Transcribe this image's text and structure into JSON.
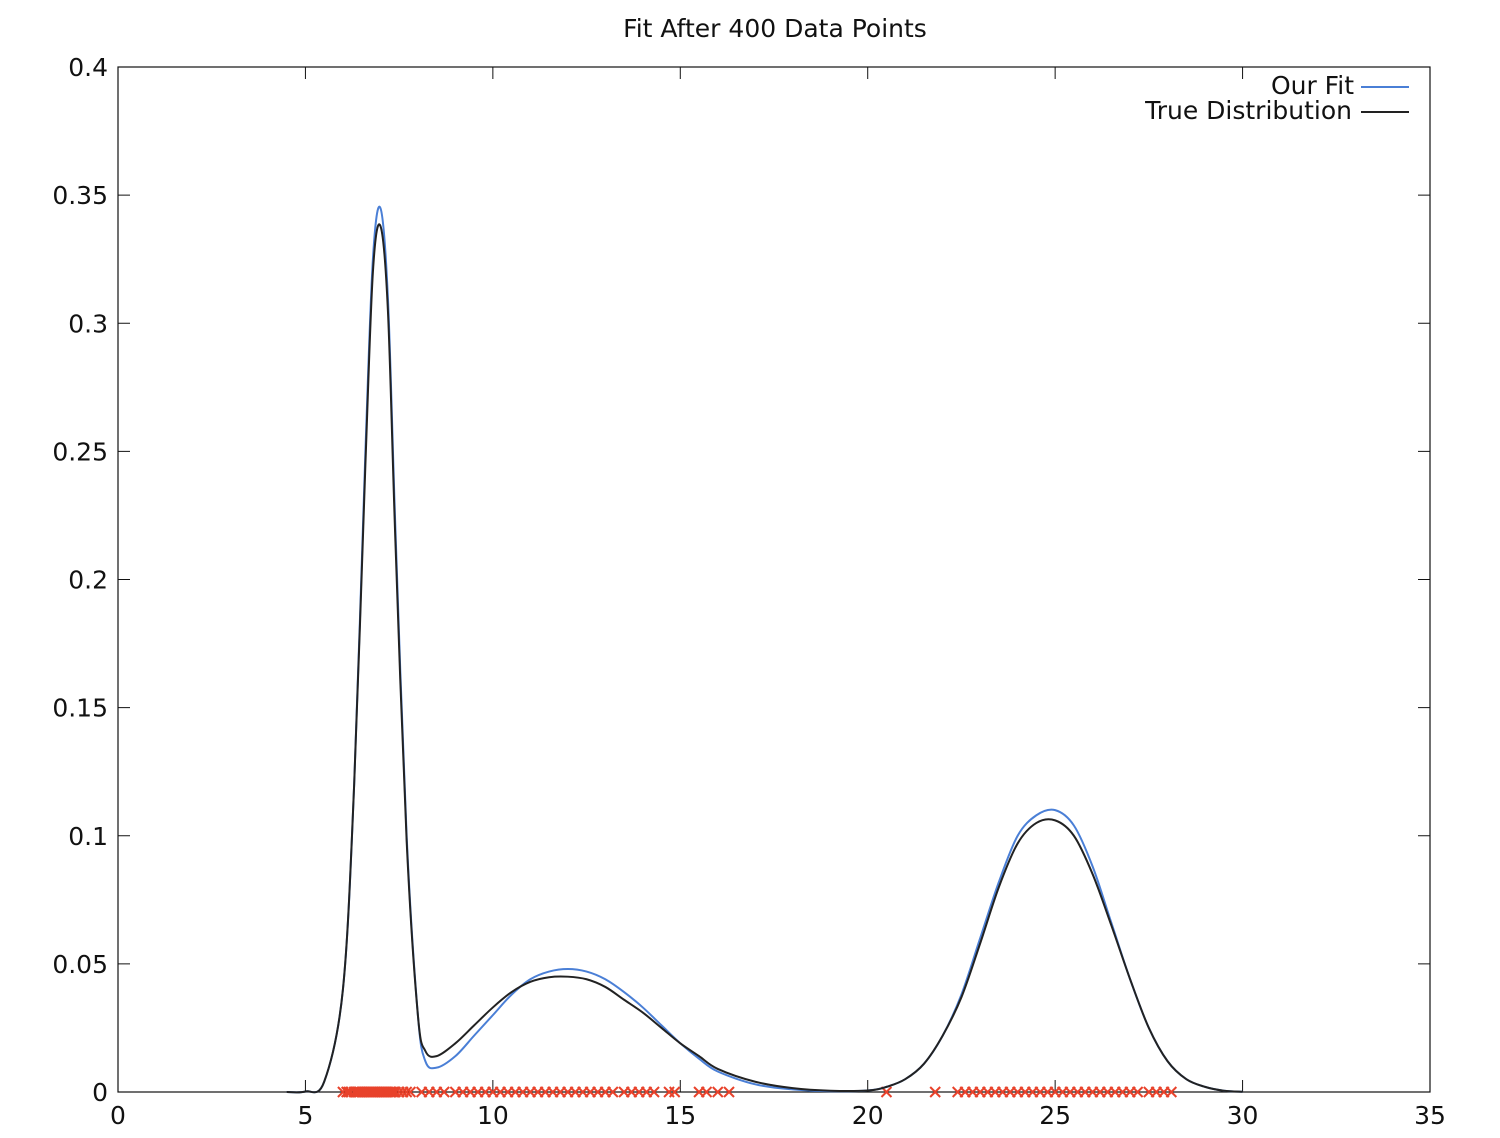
{
  "chart_data": {
    "type": "line",
    "title": "Fit After 400 Data Points",
    "xlabel": "",
    "ylabel": "",
    "xlim": [
      0,
      35
    ],
    "ylim": [
      0,
      0.4
    ],
    "x_ticks": [
      0,
      5,
      10,
      15,
      20,
      25,
      30,
      35
    ],
    "y_ticks": [
      0,
      0.05,
      0.1,
      0.15,
      0.2,
      0.25,
      0.3,
      0.35,
      0.4
    ],
    "x_tick_labels": [
      "0",
      "5",
      "10",
      "15",
      "20",
      "25",
      "30",
      "35"
    ],
    "y_tick_labels": [
      "0",
      "0.05",
      "0.1",
      "0.15",
      "0.2",
      "0.25",
      "0.3",
      "0.35",
      "0.4"
    ],
    "grid": false,
    "legend_position": "top-right",
    "series": [
      {
        "name": "Our Fit",
        "color": "#4a7fd6",
        "x": [
          4.5,
          5.0,
          5.5,
          6.0,
          6.3,
          6.6,
          6.8,
          7.0,
          7.2,
          7.4,
          7.7,
          8.0,
          8.2,
          8.5,
          9.0,
          9.5,
          10.0,
          10.5,
          11.0,
          11.5,
          12.0,
          12.5,
          13.0,
          13.5,
          14.0,
          14.5,
          15.0,
          15.5,
          16.0,
          17.0,
          18.0,
          19.0,
          20.0,
          20.5,
          21.0,
          21.5,
          22.0,
          22.5,
          23.0,
          23.5,
          24.0,
          24.5,
          25.0,
          25.5,
          26.0,
          26.5,
          27.0,
          27.5,
          28.0,
          28.5,
          29.0,
          29.5,
          30.0
        ],
        "y": [
          0,
          0.0002,
          0.004,
          0.04,
          0.12,
          0.25,
          0.325,
          0.345,
          0.31,
          0.22,
          0.1,
          0.03,
          0.012,
          0.0095,
          0.014,
          0.022,
          0.03,
          0.038,
          0.044,
          0.047,
          0.048,
          0.047,
          0.044,
          0.039,
          0.033,
          0.026,
          0.019,
          0.013,
          0.008,
          0.003,
          0.001,
          0.0003,
          0.0006,
          0.002,
          0.005,
          0.011,
          0.022,
          0.038,
          0.06,
          0.082,
          0.1,
          0.108,
          0.11,
          0.104,
          0.088,
          0.066,
          0.044,
          0.025,
          0.012,
          0.005,
          0.002,
          0.0005,
          0.0001
        ]
      },
      {
        "name": "True Distribution",
        "color": "#222222",
        "x": [
          4.5,
          5.0,
          5.5,
          6.0,
          6.3,
          6.6,
          6.8,
          7.0,
          7.2,
          7.4,
          7.7,
          8.0,
          8.2,
          8.5,
          9.0,
          9.5,
          10.0,
          10.5,
          11.0,
          11.5,
          12.0,
          12.5,
          13.0,
          13.5,
          14.0,
          14.5,
          15.0,
          15.5,
          16.0,
          17.0,
          18.0,
          19.0,
          20.0,
          20.5,
          21.0,
          21.5,
          22.0,
          22.5,
          23.0,
          23.5,
          24.0,
          24.5,
          25.0,
          25.5,
          26.0,
          26.5,
          27.0,
          27.5,
          28.0,
          28.5,
          29.0,
          29.5,
          30.0
        ],
        "y": [
          0,
          0.0002,
          0.004,
          0.04,
          0.12,
          0.245,
          0.32,
          0.338,
          0.305,
          0.215,
          0.098,
          0.03,
          0.016,
          0.014,
          0.019,
          0.026,
          0.033,
          0.039,
          0.043,
          0.0448,
          0.045,
          0.044,
          0.041,
          0.036,
          0.031,
          0.025,
          0.019,
          0.014,
          0.009,
          0.004,
          0.0015,
          0.0005,
          0.0006,
          0.002,
          0.005,
          0.011,
          0.022,
          0.037,
          0.058,
          0.08,
          0.097,
          0.105,
          0.106,
          0.1,
          0.085,
          0.065,
          0.044,
          0.025,
          0.012,
          0.005,
          0.002,
          0.0005,
          0.0001
        ]
      }
    ],
    "data_points": {
      "marker": "x",
      "color": "#e8422b",
      "y": 0,
      "x": [
        6.0,
        6.1,
        6.15,
        6.2,
        6.3,
        6.35,
        6.4,
        6.45,
        6.5,
        6.55,
        6.6,
        6.65,
        6.7,
        6.75,
        6.8,
        6.85,
        6.9,
        6.95,
        7.0,
        7.05,
        7.1,
        7.15,
        7.2,
        7.25,
        7.3,
        7.35,
        7.4,
        7.5,
        7.6,
        7.7,
        7.8,
        8.1,
        8.3,
        8.5,
        8.7,
        9.0,
        9.2,
        9.4,
        9.6,
        9.8,
        10.0,
        10.2,
        10.4,
        10.6,
        10.8,
        11.0,
        11.2,
        11.4,
        11.6,
        11.8,
        12.0,
        12.2,
        12.4,
        12.6,
        12.8,
        13.0,
        13.2,
        13.5,
        13.7,
        13.9,
        14.1,
        14.3,
        14.7,
        14.85,
        15.5,
        15.7,
        16.0,
        16.3,
        20.5,
        21.8,
        22.4,
        22.6,
        22.8,
        23.0,
        23.2,
        23.4,
        23.6,
        23.8,
        24.0,
        24.2,
        24.4,
        24.6,
        24.8,
        25.0,
        25.2,
        25.4,
        25.6,
        25.8,
        26.0,
        26.2,
        26.4,
        26.6,
        26.8,
        27.0,
        27.2,
        27.5,
        27.7,
        27.9,
        28.1
      ]
    }
  }
}
